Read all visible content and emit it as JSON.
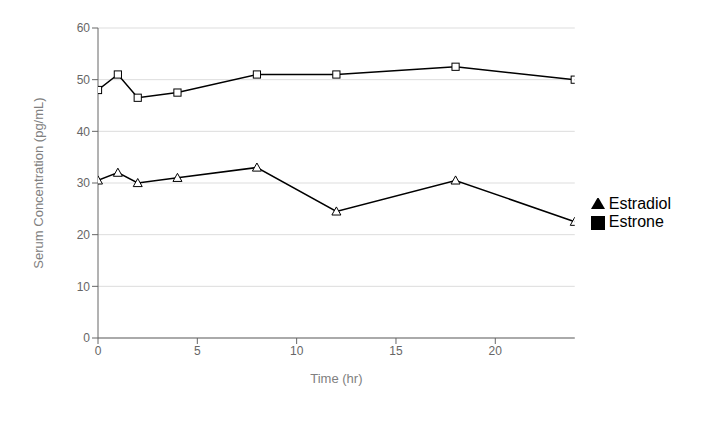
{
  "chart_data": {
    "type": "line",
    "x": [
      0,
      1,
      2,
      4,
      8,
      12,
      18,
      24
    ],
    "series": [
      {
        "name": "Estradiol",
        "color": "#000000",
        "marker": "triangle",
        "values": [
          30.5,
          32.0,
          30.0,
          31.0,
          33.0,
          24.5,
          30.5,
          22.5
        ]
      },
      {
        "name": "Estrone",
        "color": "#000000",
        "marker": "square",
        "values": [
          48.0,
          51.0,
          46.5,
          47.5,
          51.0,
          51.0,
          52.5,
          50.0
        ]
      }
    ],
    "xlabel": "Time (hr)",
    "ylabel": "Serum Concentration (pg/mL)",
    "xlim": [
      0,
      24
    ],
    "ylim": [
      0,
      60
    ],
    "xticks": [
      0,
      5,
      10,
      15,
      20
    ],
    "yticks": [
      0,
      10,
      20,
      30,
      40,
      50,
      60
    ],
    "grid": "y",
    "legend": "right"
  }
}
